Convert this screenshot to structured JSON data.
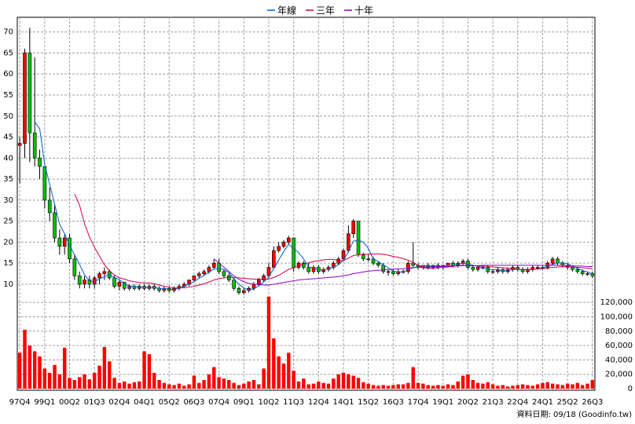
{
  "chart_data": {
    "type": "candlestick",
    "categories": [
      "97Q4",
      null,
      null,
      null,
      null,
      "99Q1",
      null,
      null,
      null,
      null,
      "00Q2",
      null,
      null,
      null,
      null,
      "01Q3",
      null,
      null,
      null,
      null,
      "02Q4",
      null,
      null,
      null,
      null,
      "04Q1",
      null,
      null,
      null,
      null,
      "05Q2",
      null,
      null,
      null,
      null,
      "06Q3",
      null,
      null,
      null,
      null,
      "07Q4",
      null,
      null,
      null,
      null,
      "09Q1",
      null,
      null,
      null,
      null,
      "10Q2",
      null,
      null,
      null,
      null,
      "11Q3",
      null,
      null,
      null,
      null,
      "12Q4",
      null,
      null,
      null,
      null,
      "14Q1",
      null,
      null,
      null,
      null,
      "15Q2",
      null,
      null,
      null,
      null,
      "16Q3",
      null,
      null,
      null,
      null,
      "17Q4",
      null,
      null,
      null,
      null,
      "19Q1",
      null,
      null,
      null,
      null,
      "20Q2",
      null,
      null,
      null,
      null,
      "21Q3",
      null,
      null,
      null,
      null,
      "22Q4",
      null,
      null,
      null,
      null,
      "24Q1",
      null,
      null,
      null,
      null,
      "25Q2",
      null,
      null,
      null,
      null,
      "26Q3"
    ],
    "open": [
      43,
      43.5,
      65,
      46,
      40,
      38,
      30,
      27,
      21,
      19,
      21,
      16,
      12,
      10,
      11,
      10,
      11.5,
      12.5,
      13,
      11.5,
      9.5,
      10.5,
      9,
      9.5,
      9,
      9.5,
      9,
      9.5,
      9,
      8.5,
      9,
      8.5,
      9,
      9.5,
      10,
      11,
      12,
      12.5,
      13,
      14,
      15,
      13,
      12,
      11,
      9,
      8,
      8.5,
      9,
      10,
      11,
      12,
      14,
      18,
      19,
      20,
      21,
      14,
      15,
      14,
      13,
      14,
      13,
      13.5,
      14,
      15,
      16,
      18,
      22,
      25,
      17,
      16,
      16,
      15,
      14.5,
      13,
      13,
      12.5,
      13,
      13,
      15,
      14.5,
      14,
      14.5,
      14,
      14.5,
      14,
      14.5,
      15,
      14.5,
      15,
      15.5,
      14,
      13.5,
      14,
      14,
      13,
      13,
      13.5,
      13,
      13.5,
      14,
      13.5,
      13,
      13.5,
      14,
      14,
      14,
      15,
      16,
      15,
      14.5,
      14,
      13.5,
      13,
      12.5,
      12.5
    ],
    "high": [
      45,
      66,
      71,
      64,
      42,
      38,
      33,
      29,
      23,
      22,
      22,
      17,
      13,
      12,
      12,
      12,
      13,
      14,
      13.5,
      12,
      11,
      10.5,
      10,
      10,
      10,
      10,
      10,
      10,
      9.5,
      9.5,
      9.5,
      9.5,
      10,
      10.5,
      11,
      12,
      13,
      13.5,
      14.5,
      16,
      16,
      13.5,
      12.5,
      11.5,
      9.5,
      9,
      9.5,
      10.5,
      11.5,
      12.5,
      15,
      19,
      20,
      20.5,
      21.5,
      21,
      15.5,
      15.5,
      15,
      14.5,
      14.5,
      14,
      14.5,
      15.5,
      16.5,
      18.5,
      24,
      25.5,
      25,
      17.5,
      17,
      16.5,
      15.5,
      15,
      13.5,
      13.5,
      13.5,
      13.5,
      15.5,
      20,
      15,
      14.5,
      15,
      14.5,
      15,
      14.5,
      15,
      15.5,
      15.5,
      16,
      16,
      14.5,
      14.5,
      14.5,
      14.5,
      13.5,
      14,
      14,
      14,
      14.5,
      14.5,
      14,
      14,
      14.5,
      14.5,
      14.5,
      15.5,
      16.5,
      16.5,
      15.5,
      15,
      14.5,
      14,
      13.5,
      13,
      13
    ],
    "low": [
      34,
      40,
      39,
      38,
      35,
      28,
      25,
      20,
      17,
      17,
      15,
      11,
      9,
      9,
      9,
      9,
      10,
      11,
      11,
      9,
      8.5,
      8.5,
      8.5,
      8.5,
      8.5,
      8.5,
      8.5,
      8.5,
      8,
      8,
      8,
      8,
      8.5,
      9,
      9.5,
      10.5,
      11.5,
      12,
      12.5,
      13.5,
      12.5,
      11.5,
      10.5,
      8.5,
      7.5,
      7.5,
      8,
      8.5,
      9.5,
      10.5,
      11.5,
      13.5,
      17.5,
      18.5,
      19.5,
      13,
      13.5,
      13.5,
      12.5,
      12.5,
      12.5,
      12.5,
      13,
      13.5,
      14.5,
      15.5,
      17.5,
      21,
      16.5,
      15.5,
      15.5,
      14.5,
      14,
      12.5,
      12,
      12,
      12,
      12.5,
      12.5,
      14,
      13.5,
      13.5,
      13.5,
      13.5,
      13.5,
      13.5,
      14,
      14,
      14,
      14.5,
      13.5,
      13,
      13,
      13.5,
      12.5,
      12.5,
      12.5,
      12.5,
      12.5,
      13,
      13,
      12.5,
      12.5,
      13,
      13.5,
      13.5,
      13.5,
      14.5,
      14.5,
      14,
      13.5,
      13,
      12.5,
      12,
      12,
      11.5
    ],
    "close": [
      43.5,
      65,
      46,
      40,
      38,
      30,
      27,
      21,
      19,
      21,
      16,
      12,
      10,
      11,
      10,
      11.5,
      12.5,
      13,
      11.5,
      9.5,
      10.5,
      9,
      9.5,
      9,
      9.5,
      9,
      9.5,
      9,
      8.5,
      9,
      8.5,
      9,
      9.5,
      10,
      11,
      12,
      12.5,
      13,
      14,
      15,
      13,
      12,
      11,
      9,
      8,
      8.5,
      9,
      10,
      11,
      12,
      14,
      18,
      19,
      20,
      21,
      14,
      15,
      14,
      13,
      14,
      13,
      13.5,
      14,
      15,
      16,
      18,
      22,
      25,
      17,
      16,
      16,
      15,
      14.5,
      13,
      13,
      12.5,
      13,
      13,
      15,
      14.5,
      14,
      14.5,
      14,
      14.5,
      14,
      14.5,
      15,
      14.5,
      15,
      15.5,
      14,
      13.5,
      14,
      14,
      13,
      13,
      13.5,
      13,
      13.5,
      14,
      13.5,
      13,
      13.5,
      14,
      14,
      14,
      15,
      16,
      15,
      14.5,
      14,
      13.5,
      13,
      12.5,
      12.5,
      12
    ],
    "up_color": "#ff0000",
    "down_color": "#00c000",
    "volume": {
      "color": "#ff0000",
      "axis": "y2",
      "values": [
        50000,
        82000,
        60000,
        52000,
        45000,
        28000,
        22000,
        33000,
        20000,
        57000,
        15000,
        12000,
        16000,
        20000,
        13000,
        22000,
        32000,
        58000,
        38000,
        15000,
        8000,
        10000,
        7000,
        9000,
        10000,
        52000,
        48000,
        22000,
        12000,
        8000,
        6000,
        5000,
        7000,
        4000,
        6000,
        18000,
        8000,
        12000,
        20000,
        30000,
        16000,
        14000,
        12000,
        8000,
        5000,
        7000,
        10000,
        12000,
        6000,
        28000,
        128000,
        70000,
        45000,
        35000,
        50000,
        25000,
        10000,
        14000,
        6000,
        7000,
        10000,
        8000,
        7000,
        14000,
        20000,
        22000,
        20000,
        18000,
        15000,
        9000,
        7000,
        5000,
        4000,
        5000,
        4000,
        5000,
        6000,
        6000,
        8000,
        30000,
        8000,
        7000,
        5000,
        4000,
        5000,
        4000,
        6000,
        5000,
        10000,
        18000,
        20000,
        12000,
        8000,
        7000,
        9000,
        6000,
        4000,
        5000,
        3000,
        4000,
        5000,
        6000,
        5000,
        4000,
        6000,
        8000,
        9000,
        7000,
        6000,
        5000,
        7000,
        6000,
        8000,
        5000,
        7000,
        12000
      ]
    },
    "series": [
      {
        "name": "年線",
        "color": "#0060d0",
        "values": [
          null,
          null,
          null,
          48.6,
          47,
          38.5,
          33.75,
          29,
          24.25,
          22,
          19.25,
          17,
          14.75,
          12.25,
          10.75,
          10.6,
          11.25,
          11.75,
          12.4,
          11.6,
          11.1,
          10.1,
          9.6,
          9.5,
          9.25,
          9.25,
          9.25,
          9.25,
          9,
          9,
          8.75,
          8.75,
          9,
          9.5,
          10.1,
          10.6,
          11.4,
          12.1,
          12.9,
          13.6,
          13.75,
          13.5,
          12.75,
          11.25,
          10,
          9.1,
          8.6,
          8.9,
          9.6,
          10.5,
          11.75,
          13.75,
          15.75,
          17.75,
          19.5,
          18.5,
          17.5,
          16,
          14,
          14,
          13.5,
          13.4,
          13.6,
          14.1,
          14.6,
          15.75,
          17.75,
          20.25,
          20.5,
          20,
          18.5,
          16,
          15.4,
          14.6,
          13.9,
          13.1,
          12.9,
          12.9,
          13.5,
          13.9,
          14.1,
          14.5,
          14.25,
          14.25,
          14.25,
          14.25,
          14.5,
          14.5,
          14.75,
          15,
          14.75,
          14.5,
          14.25,
          13.9,
          13.6,
          13.5,
          13.4,
          13.1,
          13.25,
          13.5,
          13.5,
          13.5,
          13.5,
          13.5,
          13.6,
          13.9,
          14.25,
          14.75,
          15,
          15.1,
          14.9,
          14.25,
          13.75,
          13.25,
          12.9,
          12.5
        ]
      },
      {
        "name": "三年",
        "color": "#d00040",
        "values": [
          null,
          null,
          null,
          null,
          null,
          null,
          null,
          null,
          null,
          null,
          null,
          31.5,
          28.8,
          24.4,
          21.2,
          18.8,
          16.7,
          14.6,
          13.2,
          12.2,
          11.5,
          11.2,
          10.8,
          10.6,
          10.4,
          10.3,
          10.3,
          10.1,
          9.8,
          9.5,
          9.3,
          9.1,
          9.1,
          9.2,
          9.3,
          9.5,
          9.8,
          10.1,
          10.5,
          11,
          11.3,
          11.5,
          11.6,
          11.6,
          11.5,
          11.4,
          11.3,
          11.2,
          11.2,
          11.1,
          11.2,
          11.6,
          12.1,
          12.8,
          13.5,
          13.9,
          14.3,
          14.8,
          15.1,
          15.4,
          15.6,
          15.8,
          15.9,
          15.9,
          15.6,
          15.6,
          16.2,
          16.8,
          17,
          17.1,
          17.1,
          17.2,
          17.2,
          17.1,
          16.9,
          16.6,
          16.4,
          16.1,
          15.7,
          15.2,
          14.4,
          13.9,
          13.8,
          13.8,
          13.9,
          14,
          14.1,
          14.2,
          14.4,
          14.5,
          14.5,
          14.4,
          14.3,
          14.3,
          14.2,
          14.1,
          14,
          13.9,
          13.8,
          13.8,
          13.6,
          13.5,
          13.5,
          13.5,
          13.6,
          13.7,
          13.8,
          14,
          14.1,
          14.2,
          14.2,
          14.1,
          14,
          13.9,
          13.8,
          13.7
        ]
      },
      {
        "name": "十年",
        "color": "#9000c0",
        "values": [
          null,
          null,
          null,
          null,
          null,
          null,
          null,
          null,
          null,
          null,
          null,
          null,
          null,
          null,
          null,
          null,
          null,
          null,
          null,
          null,
          null,
          null,
          null,
          null,
          null,
          null,
          null,
          null,
          null,
          null,
          null,
          null,
          null,
          null,
          null,
          null,
          null,
          null,
          null,
          16,
          15,
          14,
          13,
          12,
          11.2,
          10.6,
          10.2,
          10,
          9.9,
          9.8,
          9.8,
          10,
          10.2,
          10.4,
          10.6,
          10.8,
          11,
          11.1,
          11.2,
          11.3,
          11.4,
          11.5,
          11.6,
          11.7,
          11.8,
          12,
          12.2,
          12.5,
          12.7,
          12.9,
          13.1,
          13.2,
          13.3,
          13.4,
          13.5,
          13.6,
          13.6,
          13.7,
          13.8,
          13.9,
          14,
          14,
          14.1,
          14.1,
          14.2,
          14.2,
          14.2,
          14.3,
          14.3,
          14.4,
          14.4,
          14.4,
          14.4,
          14.5,
          14.5,
          14.5,
          14.5,
          14.5,
          14.5,
          14.5,
          14.5,
          14.5,
          14.5,
          14.5,
          14.5,
          14.5,
          14.5,
          14.5,
          14.5,
          14.5,
          14.4,
          14.4,
          14.3,
          14.3,
          14.2,
          14.2
        ]
      }
    ],
    "ylim": [
      7,
      72
    ],
    "yticks": [
      10,
      15,
      20,
      25,
      30,
      35,
      40,
      45,
      50,
      55,
      60,
      65,
      70
    ],
    "y2lim": [
      0,
      130000
    ],
    "y2ticks": [
      0,
      {
        "value": 20000,
        "label": "20,000"
      },
      {
        "value": 40000,
        "label": "40,000"
      },
      {
        "value": 60000,
        "label": "60,000"
      },
      {
        "value": 80000,
        "label": "80,000"
      },
      {
        "value": 100000,
        "label": "100,000"
      },
      {
        "value": 120000,
        "label": "120,000"
      }
    ],
    "grid": true,
    "legend": "top",
    "annotation": "資料日期: 09/18 (Goodinfo.tw)"
  }
}
